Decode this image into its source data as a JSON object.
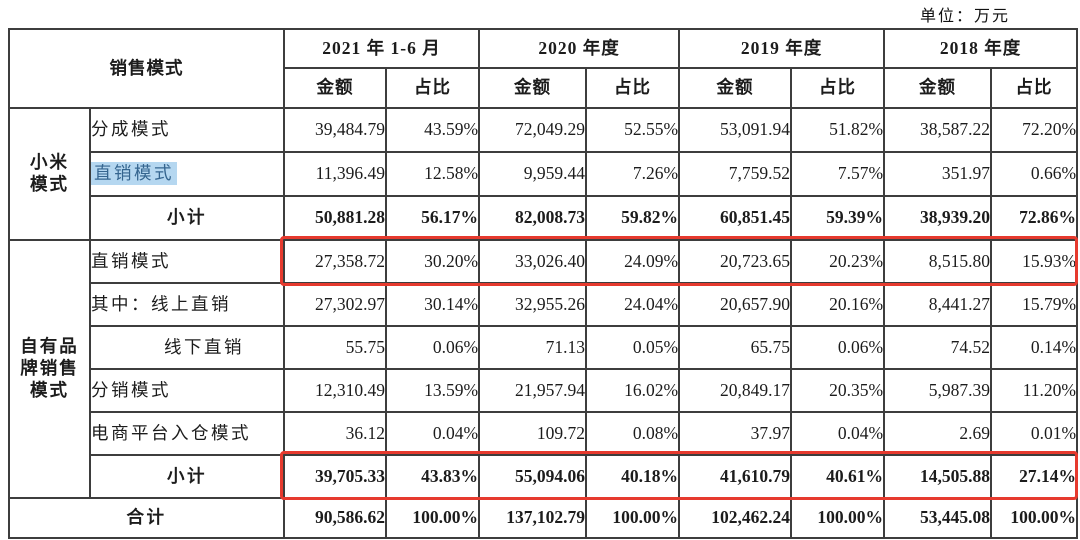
{
  "unit_label": "单位：万元",
  "colors": {
    "annotation_red": "#e63a2e",
    "selection_blue_bg": "#b5d7f0",
    "selection_blue_text": "#35658f",
    "border": "#3d3d3d"
  },
  "table": {
    "header": {
      "sales_mode": "销售模式",
      "periods": [
        "2021 年 1-6 月",
        "2020 年度",
        "2019 年度",
        "2018 年度"
      ],
      "amount": "金额",
      "ratio": "占比"
    },
    "rows": [
      {
        "group": "小米\n模式",
        "group_rowspan": 3,
        "label": "分成模式",
        "style": "normal",
        "group_class": "r-xiaomi",
        "cells": [
          "39,484.79",
          "43.59%",
          "72,049.29",
          "52.55%",
          "53,091.94",
          "51.82%",
          "38,587.22",
          "72.20%"
        ]
      },
      {
        "label": "直销模式",
        "style": "highlight",
        "group_class": "r-xiaomi",
        "cells": [
          "11,396.49",
          "12.58%",
          "9,959.44",
          "7.26%",
          "7,759.52",
          "7.57%",
          "351.97",
          "0.66%"
        ]
      },
      {
        "label": "小计",
        "style": "subtotal",
        "group_class": "r-xiaomi",
        "cells": [
          "50,881.28",
          "56.17%",
          "82,008.73",
          "59.82%",
          "60,851.45",
          "59.39%",
          "38,939.20",
          "72.86%"
        ]
      },
      {
        "group": "自有品\n牌销售\n模式",
        "group_rowspan": 6,
        "label": "直销模式",
        "style": "normal",
        "group_class": "r-own",
        "cells": [
          "27,358.72",
          "30.20%",
          "33,026.40",
          "24.09%",
          "20,723.65",
          "20.23%",
          "8,515.80",
          "15.93%"
        ]
      },
      {
        "label": "其中：线上直销",
        "style": "normal",
        "group_class": "r-own",
        "cells": [
          "27,302.97",
          "30.14%",
          "32,955.26",
          "24.04%",
          "20,657.90",
          "20.16%",
          "8,441.27",
          "15.79%"
        ]
      },
      {
        "label": "线下直销",
        "style": "indent",
        "group_class": "r-own",
        "cells": [
          "55.75",
          "0.06%",
          "71.13",
          "0.05%",
          "65.75",
          "0.06%",
          "74.52",
          "0.14%"
        ]
      },
      {
        "label": "分销模式",
        "style": "normal",
        "group_class": "r-own",
        "cells": [
          "12,310.49",
          "13.59%",
          "21,957.94",
          "16.02%",
          "20,849.17",
          "20.35%",
          "5,987.39",
          "11.20%"
        ]
      },
      {
        "label": "电商平台入仓模式",
        "style": "normal",
        "group_class": "r-own",
        "cells": [
          "36.12",
          "0.04%",
          "109.72",
          "0.08%",
          "37.97",
          "0.04%",
          "2.69",
          "0.01%"
        ]
      },
      {
        "label": "小计",
        "style": "subtotal",
        "group_class": "r-own",
        "cells": [
          "39,705.33",
          "43.83%",
          "55,094.06",
          "40.18%",
          "41,610.79",
          "40.61%",
          "14,505.88",
          "27.14%"
        ]
      },
      {
        "label": "合计",
        "style": "total",
        "group_class": "r-total",
        "cells": [
          "90,586.62",
          "100.00%",
          "137,102.79",
          "100.00%",
          "102,462.24",
          "100.00%",
          "53,445.08",
          "100.00%"
        ]
      }
    ]
  }
}
